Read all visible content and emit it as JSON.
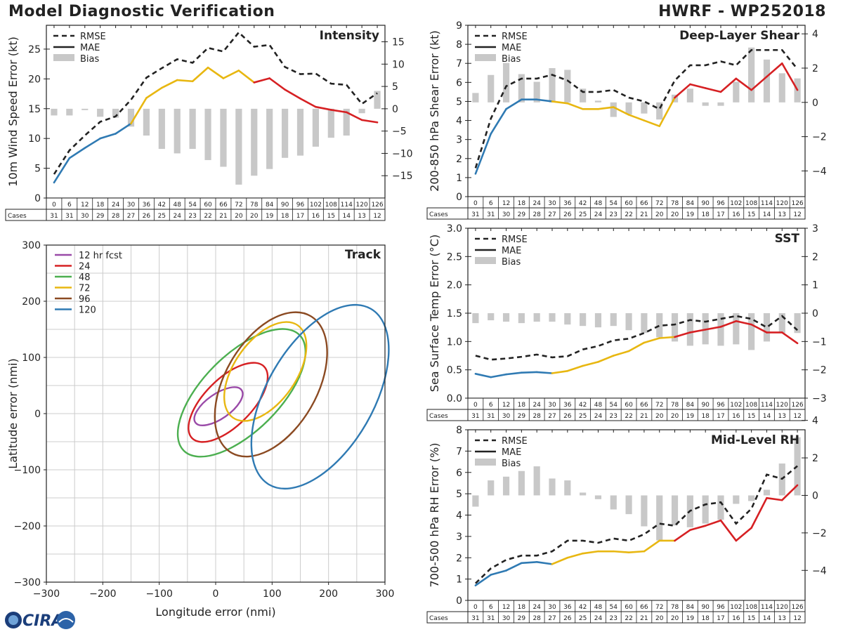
{
  "header": {
    "left_title": "Model Diagnostic Verification",
    "right_title": "HWRF - WP252018"
  },
  "logo": {
    "text": "CIRA"
  },
  "lead_times": [
    0,
    6,
    12,
    18,
    24,
    30,
    36,
    42,
    48,
    54,
    60,
    66,
    72,
    78,
    84,
    90,
    96,
    102,
    108,
    114,
    120,
    126
  ],
  "cases": [
    31,
    31,
    30,
    29,
    28,
    27,
    26,
    25,
    24,
    23,
    22,
    21,
    20,
    20,
    19,
    18,
    17,
    16,
    15,
    14,
    13,
    12
  ],
  "cases_label": "Cases",
  "legend_rmse": "RMSE",
  "legend_mae": "MAE",
  "legend_bias": "Bias",
  "colors": {
    "blue": "#2f7ab3",
    "yellow": "#e8b711",
    "red": "#d62023",
    "green": "#4caf50",
    "purple": "#9a4aa8",
    "brown": "#8b4a22",
    "bias": "#c8c8c8",
    "dash": "#222222"
  },
  "chart_data": [
    {
      "id": "intensity",
      "type": "line",
      "title": "Intensity",
      "ylabel": "10m Wind Speed Error (kt)",
      "ylim": [
        0,
        29
      ],
      "yticks": [
        0,
        5,
        10,
        15,
        20,
        25
      ],
      "y2lim": [
        -20,
        18.7
      ],
      "y2ticks": [
        -15,
        -10,
        -5,
        0,
        5,
        10,
        15
      ],
      "rmse": [
        4.0,
        8.0,
        10.5,
        12.8,
        13.7,
        16.5,
        20.2,
        21.8,
        23.3,
        22.7,
        25.2,
        24.6,
        27.8,
        25.4,
        25.7,
        22.0,
        20.8,
        20.9,
        19.2,
        19.0,
        15.8,
        17.6
      ],
      "mae": [
        2.6,
        6.7,
        8.4,
        10.0,
        10.8,
        12.5,
        16.8,
        18.5,
        19.8,
        19.6,
        21.9,
        20.1,
        21.4,
        19.4,
        20.1,
        18.2,
        16.7,
        15.3,
        14.8,
        14.4,
        13.1,
        12.7
      ],
      "bias": [
        -1.5,
        -1.5,
        -0.3,
        -1.8,
        -2.0,
        -4.0,
        -6.0,
        -9.0,
        -10.0,
        -9.0,
        -11.5,
        -13.0,
        -17.0,
        -15.0,
        -13.5,
        -11.0,
        -10.5,
        -8.5,
        -6.5,
        -6.0,
        -1.0,
        4.0
      ]
    },
    {
      "id": "shear",
      "type": "line",
      "title": "Deep-Layer Shear",
      "ylabel": "200-850 hPa Shear Error (kt)",
      "ylim": [
        0,
        9
      ],
      "yticks": [
        0,
        1,
        2,
        3,
        4,
        5,
        6,
        7,
        8,
        9
      ],
      "y2lim": [
        -5.5,
        4.5
      ],
      "y2ticks": [
        -4,
        -2,
        0,
        2,
        4
      ],
      "rmse": [
        1.5,
        4.1,
        5.8,
        6.2,
        6.2,
        6.4,
        6.1,
        5.5,
        5.5,
        5.6,
        5.2,
        5.0,
        4.6,
        6.1,
        6.9,
        6.9,
        7.1,
        6.9,
        7.7,
        7.7,
        7.7,
        6.7
      ],
      "mae": [
        1.2,
        3.3,
        4.6,
        5.1,
        5.1,
        5.0,
        4.9,
        4.6,
        4.6,
        4.7,
        4.3,
        4.0,
        3.7,
        5.2,
        5.9,
        5.7,
        5.5,
        6.2,
        5.6,
        6.3,
        7.0,
        5.6
      ],
      "bias": [
        0.55,
        1.6,
        2.3,
        1.65,
        1.2,
        2.0,
        1.9,
        0.8,
        0.1,
        -0.85,
        -0.7,
        -0.65,
        -1.0,
        0.45,
        0.8,
        -0.2,
        -0.2,
        1.2,
        3.2,
        2.5,
        1.7,
        1.4
      ]
    },
    {
      "id": "sst",
      "type": "line",
      "title": "SST",
      "ylabel": "Sea Surface Temp Error (°C)",
      "ylim": [
        0,
        3
      ],
      "yticks": [
        0.0,
        0.5,
        1.0,
        1.5,
        2.0,
        2.5,
        3.0
      ],
      "yticklabels": [
        "0.0",
        "0.5",
        "1.0",
        "1.5",
        "2.0",
        "2.5",
        "3.0"
      ],
      "y2lim": [
        -3,
        3
      ],
      "y2ticks": [
        -3,
        -2,
        -1,
        0,
        1,
        2,
        3
      ],
      "rmse": [
        0.75,
        0.68,
        0.7,
        0.73,
        0.77,
        0.72,
        0.74,
        0.86,
        0.92,
        1.02,
        1.05,
        1.15,
        1.28,
        1.3,
        1.38,
        1.35,
        1.4,
        1.45,
        1.4,
        1.25,
        1.45,
        1.2
      ],
      "mae": [
        0.43,
        0.37,
        0.42,
        0.45,
        0.46,
        0.44,
        0.48,
        0.57,
        0.64,
        0.75,
        0.83,
        0.98,
        1.06,
        1.08,
        1.16,
        1.21,
        1.26,
        1.36,
        1.3,
        1.16,
        1.16,
        0.97
      ],
      "bias": [
        -0.35,
        -0.25,
        -0.3,
        -0.35,
        -0.3,
        -0.3,
        -0.4,
        -0.45,
        -0.5,
        -0.45,
        -0.6,
        -0.7,
        -0.85,
        -1.0,
        -1.15,
        -1.1,
        -1.15,
        -1.1,
        -1.3,
        -1.0,
        -0.7,
        -0.7
      ]
    },
    {
      "id": "rh",
      "type": "line",
      "title": "Mid-Level RH",
      "ylabel": "700-500 hPa RH Error (%)",
      "ylim": [
        0,
        8
      ],
      "yticks": [
        0,
        1,
        2,
        3,
        4,
        5,
        6,
        7,
        8
      ],
      "y2lim": [
        -5.6,
        3.5
      ],
      "y2ticks": [
        -4,
        -2,
        0,
        2,
        4
      ],
      "rmse": [
        0.8,
        1.5,
        1.9,
        2.1,
        2.1,
        2.3,
        2.8,
        2.8,
        2.7,
        2.9,
        2.8,
        3.1,
        3.6,
        3.5,
        4.2,
        4.5,
        4.6,
        3.6,
        4.3,
        5.9,
        5.7,
        6.3
      ],
      "mae": [
        0.7,
        1.2,
        1.4,
        1.75,
        1.8,
        1.7,
        2.0,
        2.2,
        2.3,
        2.3,
        2.25,
        2.3,
        2.8,
        2.8,
        3.3,
        3.5,
        3.75,
        2.8,
        3.4,
        4.8,
        4.7,
        5.4
      ],
      "bias": [
        -0.6,
        0.8,
        1.0,
        1.3,
        1.55,
        0.9,
        0.8,
        0.15,
        -0.2,
        -0.75,
        -1.0,
        -1.65,
        -2.4,
        -1.6,
        -1.7,
        -1.5,
        -1.3,
        -0.45,
        -0.3,
        0.3,
        1.7,
        3.1
      ]
    },
    {
      "id": "track",
      "type": "scatter",
      "title": "Track",
      "xlabel": "Longitude error (nmi)",
      "ylabel": "Latitude error (nmi)",
      "xlim": [
        -300,
        300
      ],
      "ylim": [
        -300,
        300
      ],
      "xticks": [
        -300,
        -200,
        -100,
        0,
        100,
        200,
        300
      ],
      "xticklabels": [
        "−300",
        "−200",
        "−100",
        "0",
        "100",
        "200",
        "300"
      ],
      "yticks": [
        -300,
        -200,
        -100,
        0,
        100,
        200,
        300
      ],
      "yticklabels": [
        "−300",
        "−200",
        "−100",
        "0",
        "100",
        "200",
        "300"
      ],
      "ellipses": [
        {
          "name": "12 hr fcst",
          "color": "#9a4aa8",
          "cx": 5,
          "cy": 13,
          "rx": 50,
          "ry": 22,
          "angle_deg": 35
        },
        {
          "name": "24",
          "color": "#d62023",
          "cx": 22,
          "cy": 20,
          "rx": 90,
          "ry": 42,
          "angle_deg": 45
        },
        {
          "name": "48",
          "color": "#4caf50",
          "cx": 46,
          "cy": 37,
          "rx": 145,
          "ry": 68,
          "angle_deg": 45
        },
        {
          "name": "72",
          "color": "#e8b711",
          "cx": 88,
          "cy": 75,
          "rx": 100,
          "ry": 55,
          "angle_deg": 55
        },
        {
          "name": "96",
          "color": "#8b4a22",
          "cx": 98,
          "cy": 52,
          "rx": 140,
          "ry": 82,
          "angle_deg": 60
        },
        {
          "name": "120",
          "color": "#2f7ab3",
          "cx": 185,
          "cy": 30,
          "rx": 180,
          "ry": 95,
          "angle_deg": 60
        }
      ]
    }
  ]
}
